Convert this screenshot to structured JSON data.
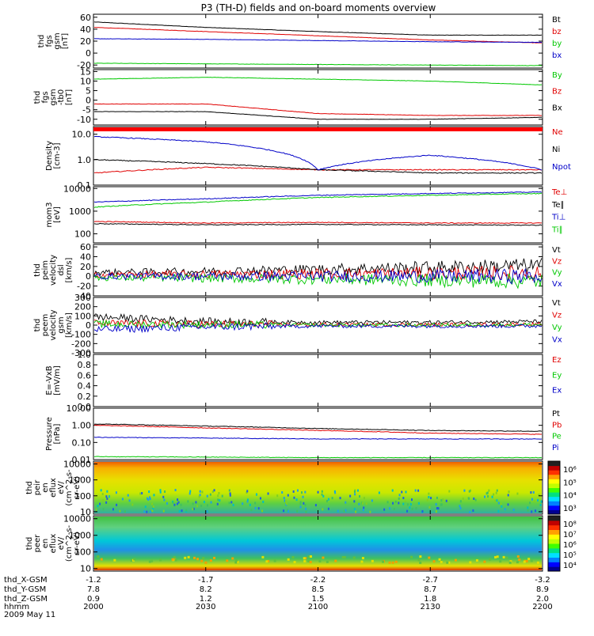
{
  "title": "P3 (TH-D) fields and on-board moments overview",
  "colors": {
    "black": "#000000",
    "red": "#e00000",
    "green": "#00c800",
    "blue": "#0000c8"
  },
  "footer": {
    "row_labels": [
      "thd_X-GSM",
      "thd_Y-GSM",
      "thd_Z-GSM",
      "hhmm",
      "2009 May 11"
    ],
    "columns": [
      {
        "x": "-1.2",
        "y": "7.8",
        "z": "0.9",
        "t": "2000"
      },
      {
        "x": "-1.7",
        "y": "8.2",
        "z": "1.2",
        "t": "2030"
      },
      {
        "x": "-2.2",
        "y": "8.5",
        "z": "1.5",
        "t": "2100"
      },
      {
        "x": "-2.7",
        "y": "8.7",
        "z": "1.8",
        "t": "2130"
      },
      {
        "x": "-3.2",
        "y": "8.9",
        "z": "2.0",
        "t": "2200"
      }
    ]
  },
  "chart_data": [
    {
      "type": "line",
      "ylabel": [
        "thd",
        "fgs",
        "gsm",
        "[nT]"
      ],
      "ylim": [
        -25,
        65
      ],
      "yticks": [
        "60",
        "40",
        "20",
        "0",
        "-20"
      ],
      "legend": [
        {
          "label": "Bt",
          "color": "#000000"
        },
        {
          "label": "bz",
          "color": "#e00000"
        },
        {
          "label": "by",
          "color": "#00c800"
        },
        {
          "label": "bx",
          "color": "#0000c8"
        }
      ],
      "x": [
        "20:00",
        "20:30",
        "21:00",
        "21:30",
        "22:00"
      ],
      "series": [
        {
          "name": "Bt",
          "values": [
            52,
            43,
            36,
            30,
            30
          ]
        },
        {
          "name": "bz",
          "values": [
            43,
            36,
            29,
            22,
            17
          ]
        },
        {
          "name": "by",
          "values": [
            -17,
            -18,
            -19,
            -20,
            -21
          ]
        },
        {
          "name": "bx",
          "values": [
            24,
            23,
            21,
            19,
            18
          ]
        }
      ]
    },
    {
      "type": "line",
      "ylabel": [
        "thd",
        "fgs",
        "gsm",
        "-tb0",
        "[nT]"
      ],
      "ylim": [
        -13,
        16
      ],
      "yticks": [
        "15",
        "10",
        "5",
        "0",
        "-5",
        "-10"
      ],
      "legend": [
        {
          "label": "By",
          "color": "#00c800"
        },
        {
          "label": "Bz",
          "color": "#e00000"
        },
        {
          "label": "Bx",
          "color": "#000000"
        }
      ],
      "x": [
        "20:00",
        "20:30",
        "21:00",
        "21:30",
        "22:00"
      ],
      "series": [
        {
          "name": "By",
          "values": [
            11,
            12,
            11,
            10,
            8
          ]
        },
        {
          "name": "Bz",
          "values": [
            -2,
            -2,
            -7,
            -8,
            -8
          ]
        },
        {
          "name": "Bx",
          "values": [
            -6,
            -6,
            -10,
            -10,
            -9
          ]
        }
      ]
    },
    {
      "type": "line",
      "ylabel": [
        "Density",
        "[cm-3]"
      ],
      "yscale": "log",
      "ylim": [
        0.1,
        20
      ],
      "yticks": [
        "10.0",
        "1.0",
        "0.1"
      ],
      "legend": [
        {
          "label": "Ne",
          "color": "#e00000"
        },
        {
          "label": "Ni",
          "color": "#000000"
        },
        {
          "label": "Npot",
          "color": "#0000c8"
        }
      ],
      "x": [
        "20:00",
        "20:30",
        "21:00",
        "21:30",
        "22:00"
      ],
      "series": [
        {
          "name": "Ne",
          "values": [
            0.3,
            0.5,
            0.4,
            0.4,
            0.4
          ]
        },
        {
          "name": "Ni",
          "values": [
            1.0,
            0.7,
            0.4,
            0.3,
            0.3
          ]
        },
        {
          "name": "Npot",
          "values": [
            8.0,
            5.0,
            0.4,
            1.5,
            0.4
          ]
        }
      ]
    },
    {
      "type": "line",
      "ylabel": [
        "mom3",
        "[eV]"
      ],
      "yscale": "log",
      "ylim": [
        40,
        12000
      ],
      "yticks": [
        "10000",
        "1000",
        "100"
      ],
      "legend": [
        {
          "label": "Te⊥",
          "color": "#e00000"
        },
        {
          "label": "Te∥",
          "color": "#000000"
        },
        {
          "label": "Ti⊥",
          "color": "#0000c8"
        },
        {
          "label": "Ti∥",
          "color": "#00c800"
        }
      ],
      "x": [
        "20:00",
        "20:30",
        "21:00",
        "21:30",
        "22:00"
      ],
      "series": [
        {
          "name": "Te⊥",
          "values": [
            350,
            300,
            320,
            300,
            300
          ]
        },
        {
          "name": "Te∥",
          "values": [
            280,
            250,
            260,
            250,
            240
          ]
        },
        {
          "name": "Ti⊥",
          "values": [
            2500,
            3500,
            5000,
            6000,
            7000
          ]
        },
        {
          "name": "Ti∥",
          "values": [
            1500,
            2500,
            4000,
            5000,
            6000
          ]
        }
      ]
    },
    {
      "type": "line",
      "ylabel": [
        "thd",
        "peim",
        "velocity",
        "dsl",
        "[km/s]"
      ],
      "ylim": [
        -40,
        65
      ],
      "yticks": [
        "60",
        "40",
        "20",
        "0",
        "-20",
        "-40"
      ],
      "legend": [
        {
          "label": "Vt",
          "color": "#000000"
        },
        {
          "label": "Vz",
          "color": "#e00000"
        },
        {
          "label": "Vy",
          "color": "#00c800"
        },
        {
          "label": "Vx",
          "color": "#0000c8"
        }
      ],
      "x": [
        "20:00",
        "20:30",
        "21:00",
        "21:30",
        "22:00"
      ],
      "series": [
        {
          "name": "Vt",
          "values": [
            8,
            10,
            14,
            18,
            22
          ]
        },
        {
          "name": "Vz",
          "values": [
            3,
            4,
            5,
            6,
            7
          ]
        },
        {
          "name": "Vy",
          "values": [
            -3,
            -4,
            -6,
            -8,
            -10
          ]
        },
        {
          "name": "Vx",
          "values": [
            0,
            0,
            0,
            0,
            0
          ]
        }
      ]
    },
    {
      "type": "line",
      "ylabel": [
        "thd",
        "peem",
        "velocity",
        "gsm",
        "[km/s]"
      ],
      "ylim": [
        -300,
        300
      ],
      "yticks": [
        "300",
        "200",
        "100",
        "0",
        "-100",
        "-200",
        "-300"
      ],
      "legend": [
        {
          "label": "Vt",
          "color": "#000000"
        },
        {
          "label": "Vz",
          "color": "#e00000"
        },
        {
          "label": "Vy",
          "color": "#00c800"
        },
        {
          "label": "Vx",
          "color": "#0000c8"
        }
      ],
      "x": [
        "20:00",
        "20:30",
        "21:00",
        "21:30",
        "22:00"
      ],
      "series": [
        {
          "name": "Vt",
          "values": [
            90,
            40,
            30,
            30,
            40
          ]
        },
        {
          "name": "Vz",
          "values": [
            20,
            10,
            5,
            5,
            10
          ]
        },
        {
          "name": "Vy",
          "values": [
            10,
            5,
            0,
            0,
            5
          ]
        },
        {
          "name": "Vx",
          "values": [
            -50,
            -20,
            -10,
            -10,
            -10
          ]
        }
      ]
    },
    {
      "type": "line",
      "ylabel": [
        "E=-VxB",
        "[mV/m]"
      ],
      "ylim": [
        0,
        1
      ],
      "yticks": [
        "1.0",
        "0.8",
        "0.6",
        "0.4",
        "0.2",
        "0.0"
      ],
      "legend": [
        {
          "label": "Ez",
          "color": "#e00000"
        },
        {
          "label": "Ey",
          "color": "#00c800"
        },
        {
          "label": "Ex",
          "color": "#0000c8"
        }
      ],
      "x": [],
      "series": []
    },
    {
      "type": "line",
      "ylabel": [
        "Pressure",
        "[nPa]"
      ],
      "yscale": "log",
      "ylim": [
        0.01,
        10
      ],
      "yticks": [
        "10.00",
        "1.00",
        "0.10",
        "0.01"
      ],
      "legend": [
        {
          "label": "Pt",
          "color": "#000000"
        },
        {
          "label": "Pb",
          "color": "#e00000"
        },
        {
          "label": "Pe",
          "color": "#00c800"
        },
        {
          "label": "Pi",
          "color": "#0000c8"
        }
      ],
      "x": [
        "20:00",
        "20:30",
        "21:00",
        "21:30",
        "22:00"
      ],
      "series": [
        {
          "name": "Pt",
          "values": [
            1.2,
            0.9,
            0.65,
            0.5,
            0.45
          ]
        },
        {
          "name": "Pb",
          "values": [
            1.0,
            0.7,
            0.5,
            0.35,
            0.3
          ]
        },
        {
          "name": "Pe",
          "values": [
            0.015,
            0.014,
            0.013,
            0.013,
            0.013
          ]
        },
        {
          "name": "Pi",
          "values": [
            0.2,
            0.18,
            0.16,
            0.16,
            0.16
          ]
        }
      ]
    },
    {
      "type": "heatmap",
      "ylabel": [
        "thd",
        "peir",
        "en",
        "eflux",
        "eV/",
        "(cm^2-s-",
        "sr-eV)"
      ],
      "yscale": "log",
      "ylim": [
        7,
        15000
      ],
      "yticks": [
        "10000",
        "1000",
        "100",
        "10"
      ],
      "colorbar": {
        "ticks": [
          "10⁶",
          "10⁵",
          "10⁴",
          "10³"
        ]
      }
    },
    {
      "type": "heatmap",
      "ylabel": [
        "thd",
        "peer",
        "en",
        "eflux",
        "eV/",
        "(cm^2-s-",
        "sr-eV)"
      ],
      "yscale": "log",
      "ylim": [
        7,
        15000
      ],
      "yticks": [
        "10000",
        "1000",
        "100",
        "10"
      ],
      "colorbar": {
        "ticks": [
          "10⁸",
          "10⁷",
          "10⁶",
          "10⁵",
          "10⁴"
        ]
      }
    }
  ]
}
